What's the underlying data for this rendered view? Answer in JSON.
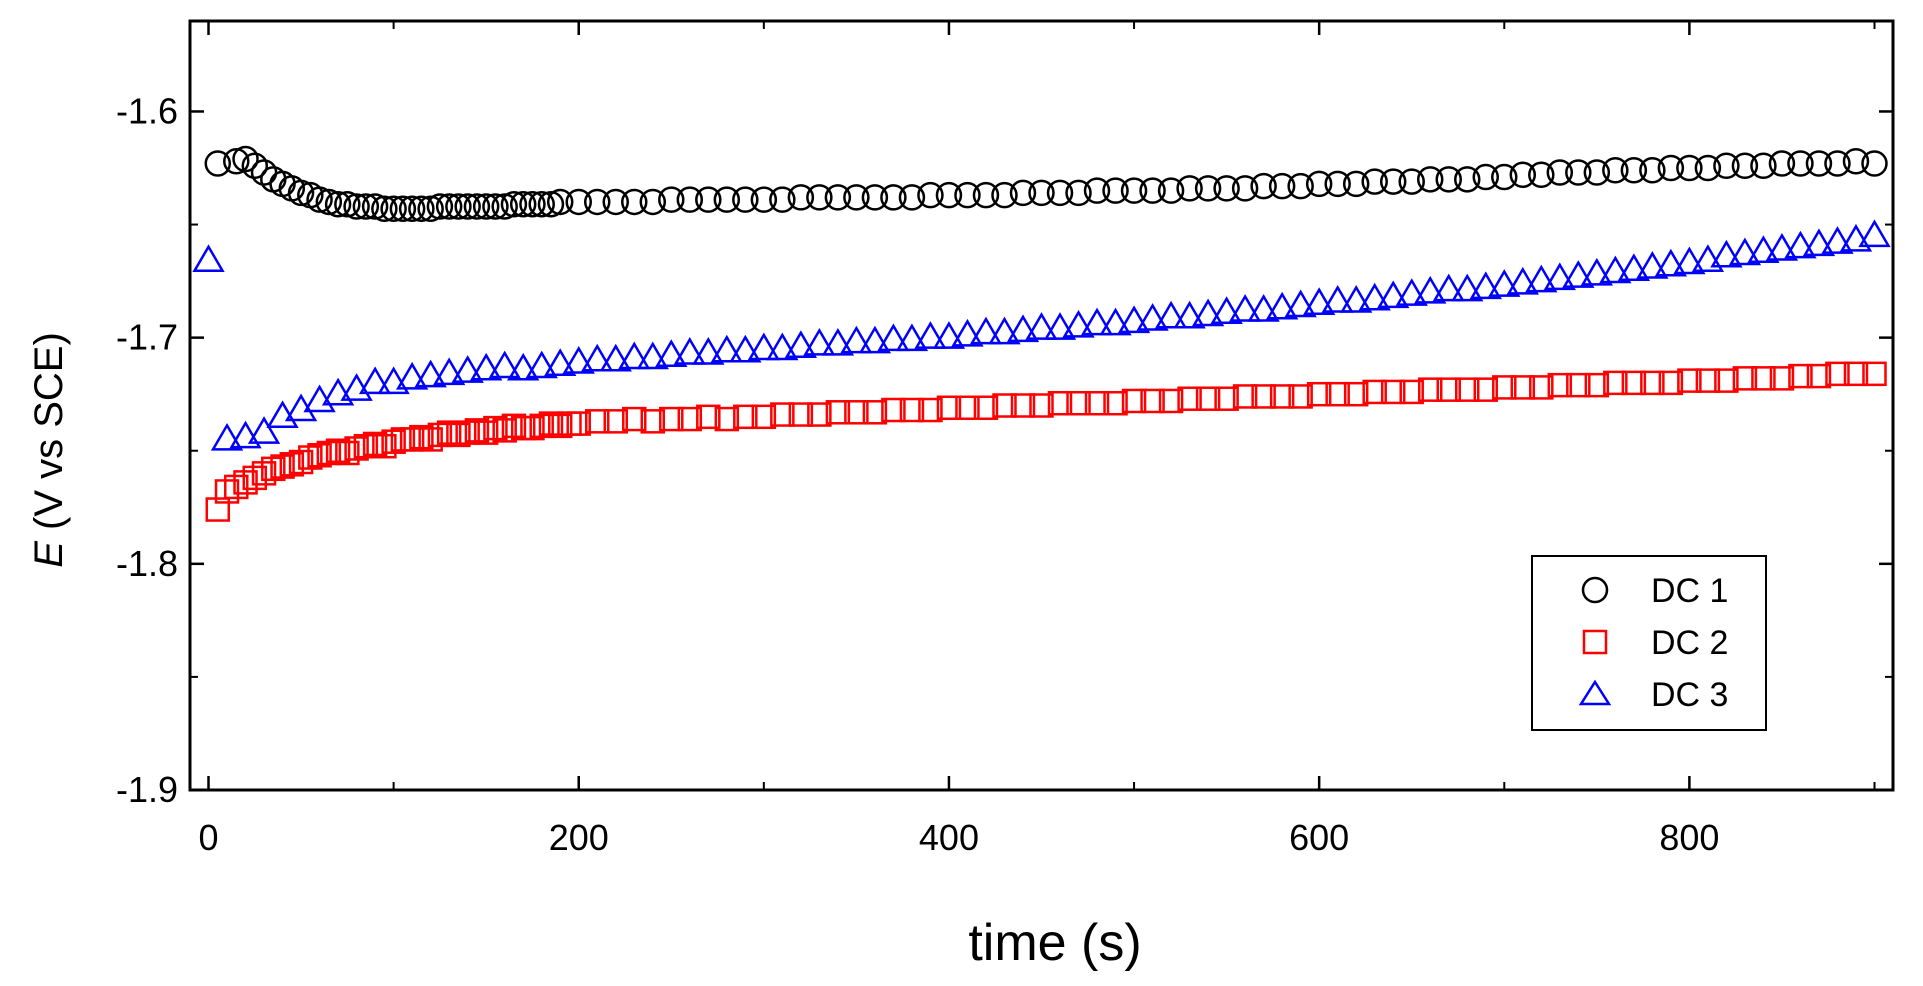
{
  "chart_data": {
    "type": "scatter",
    "title": "",
    "xlabel": "time (s)",
    "ylabel_italic": "E",
    "ylabel_rest": " (V vs SCE)",
    "xlim": [
      -10,
      910
    ],
    "ylim": [
      -1.9,
      -1.56
    ],
    "xticks": [
      0,
      200,
      400,
      600,
      800
    ],
    "xtick_labels": [
      "0",
      "200",
      "400",
      "600",
      "800"
    ],
    "yticks": [
      -1.9,
      -1.8,
      -1.7,
      -1.6
    ],
    "ytick_labels": [
      "-1.9",
      "-1.8",
      "-1.7",
      "-1.6"
    ],
    "grid": false,
    "legend_position": "bottom-right",
    "series": [
      {
        "name": "DC 1",
        "marker": "circle",
        "color": "#000000",
        "x": [
          5,
          15,
          20,
          25,
          30,
          35,
          40,
          45,
          50,
          55,
          60,
          65,
          70,
          75,
          80,
          85,
          90,
          95,
          100,
          105,
          110,
          115,
          120,
          125,
          130,
          135,
          140,
          145,
          150,
          155,
          160,
          165,
          170,
          175,
          180,
          185,
          190,
          200,
          210,
          220,
          230,
          240,
          250,
          260,
          270,
          280,
          290,
          300,
          310,
          320,
          330,
          340,
          350,
          360,
          370,
          380,
          390,
          400,
          410,
          420,
          430,
          440,
          450,
          460,
          470,
          480,
          490,
          500,
          510,
          520,
          530,
          540,
          550,
          560,
          570,
          580,
          590,
          600,
          610,
          620,
          630,
          640,
          650,
          660,
          670,
          680,
          690,
          700,
          710,
          720,
          730,
          740,
          750,
          760,
          770,
          780,
          790,
          800,
          810,
          820,
          830,
          840,
          850,
          860,
          870,
          880,
          890,
          900
        ],
        "y": [
          -1.623,
          -1.622,
          -1.621,
          -1.624,
          -1.627,
          -1.63,
          -1.632,
          -1.634,
          -1.636,
          -1.637,
          -1.639,
          -1.64,
          -1.641,
          -1.641,
          -1.642,
          -1.642,
          -1.642,
          -1.643,
          -1.643,
          -1.643,
          -1.643,
          -1.643,
          -1.643,
          -1.642,
          -1.642,
          -1.642,
          -1.642,
          -1.642,
          -1.642,
          -1.642,
          -1.642,
          -1.641,
          -1.641,
          -1.641,
          -1.641,
          -1.641,
          -1.64,
          -1.64,
          -1.64,
          -1.64,
          -1.64,
          -1.64,
          -1.639,
          -1.639,
          -1.639,
          -1.639,
          -1.639,
          -1.639,
          -1.639,
          -1.638,
          -1.638,
          -1.638,
          -1.638,
          -1.638,
          -1.638,
          -1.638,
          -1.637,
          -1.637,
          -1.637,
          -1.637,
          -1.637,
          -1.636,
          -1.636,
          -1.636,
          -1.636,
          -1.635,
          -1.635,
          -1.635,
          -1.635,
          -1.635,
          -1.634,
          -1.634,
          -1.634,
          -1.634,
          -1.633,
          -1.633,
          -1.633,
          -1.632,
          -1.632,
          -1.632,
          -1.631,
          -1.631,
          -1.631,
          -1.63,
          -1.63,
          -1.63,
          -1.629,
          -1.629,
          -1.628,
          -1.628,
          -1.627,
          -1.627,
          -1.627,
          -1.626,
          -1.626,
          -1.626,
          -1.625,
          -1.625,
          -1.625,
          -1.624,
          -1.624,
          -1.624,
          -1.623,
          -1.623,
          -1.623,
          -1.623,
          -1.622,
          -1.623
        ]
      },
      {
        "name": "DC 2",
        "marker": "square",
        "color": "#ff0000",
        "x": [
          5,
          10,
          15,
          20,
          25,
          30,
          35,
          40,
          45,
          50,
          55,
          60,
          65,
          70,
          75,
          80,
          85,
          90,
          95,
          100,
          105,
          110,
          115,
          120,
          125,
          130,
          135,
          140,
          145,
          150,
          155,
          160,
          165,
          170,
          175,
          180,
          185,
          190,
          195,
          200,
          210,
          220,
          230,
          240,
          250,
          260,
          270,
          280,
          290,
          300,
          310,
          320,
          330,
          340,
          350,
          360,
          370,
          380,
          390,
          400,
          410,
          420,
          430,
          440,
          450,
          460,
          470,
          480,
          490,
          500,
          510,
          520,
          530,
          540,
          550,
          560,
          570,
          580,
          590,
          600,
          610,
          620,
          630,
          640,
          650,
          660,
          670,
          680,
          690,
          700,
          710,
          720,
          730,
          740,
          750,
          760,
          770,
          780,
          790,
          800,
          810,
          820,
          830,
          840,
          850,
          860,
          870,
          880,
          890,
          900
        ],
        "y": [
          -1.776,
          -1.768,
          -1.766,
          -1.764,
          -1.762,
          -1.76,
          -1.758,
          -1.757,
          -1.756,
          -1.755,
          -1.753,
          -1.752,
          -1.751,
          -1.75,
          -1.751,
          -1.749,
          -1.748,
          -1.747,
          -1.748,
          -1.746,
          -1.745,
          -1.745,
          -1.744,
          -1.745,
          -1.743,
          -1.742,
          -1.743,
          -1.742,
          -1.741,
          -1.742,
          -1.74,
          -1.741,
          -1.739,
          -1.74,
          -1.74,
          -1.739,
          -1.738,
          -1.739,
          -1.738,
          -1.738,
          -1.737,
          -1.737,
          -1.736,
          -1.737,
          -1.736,
          -1.736,
          -1.735,
          -1.736,
          -1.735,
          -1.735,
          -1.734,
          -1.734,
          -1.734,
          -1.733,
          -1.733,
          -1.733,
          -1.732,
          -1.732,
          -1.732,
          -1.731,
          -1.731,
          -1.731,
          -1.73,
          -1.73,
          -1.73,
          -1.729,
          -1.729,
          -1.729,
          -1.729,
          -1.728,
          -1.728,
          -1.728,
          -1.727,
          -1.727,
          -1.727,
          -1.726,
          -1.726,
          -1.726,
          -1.726,
          -1.725,
          -1.725,
          -1.725,
          -1.724,
          -1.724,
          -1.724,
          -1.723,
          -1.723,
          -1.723,
          -1.723,
          -1.722,
          -1.722,
          -1.722,
          -1.721,
          -1.721,
          -1.721,
          -1.72,
          -1.72,
          -1.72,
          -1.72,
          -1.719,
          -1.719,
          -1.719,
          -1.718,
          -1.718,
          -1.718,
          -1.717,
          -1.717,
          -1.716,
          -1.716,
          -1.716
        ]
      },
      {
        "name": "DC 3",
        "marker": "triangle",
        "color": "#0000ff",
        "x": [
          0,
          10,
          20,
          30,
          40,
          50,
          60,
          70,
          80,
          90,
          100,
          110,
          120,
          130,
          140,
          150,
          160,
          170,
          180,
          190,
          200,
          210,
          220,
          230,
          240,
          250,
          260,
          270,
          280,
          290,
          300,
          310,
          320,
          330,
          340,
          350,
          360,
          370,
          380,
          390,
          400,
          410,
          420,
          430,
          440,
          450,
          460,
          470,
          480,
          490,
          500,
          510,
          520,
          530,
          540,
          550,
          560,
          570,
          580,
          590,
          600,
          610,
          620,
          630,
          640,
          650,
          660,
          670,
          680,
          690,
          700,
          710,
          720,
          730,
          740,
          750,
          760,
          770,
          780,
          790,
          800,
          810,
          820,
          830,
          840,
          850,
          860,
          870,
          880,
          890,
          900
        ],
        "y": [
          -1.666,
          -1.745,
          -1.744,
          -1.742,
          -1.735,
          -1.732,
          -1.728,
          -1.725,
          -1.723,
          -1.72,
          -1.72,
          -1.718,
          -1.717,
          -1.716,
          -1.715,
          -1.714,
          -1.713,
          -1.714,
          -1.713,
          -1.712,
          -1.711,
          -1.71,
          -1.71,
          -1.709,
          -1.709,
          -1.708,
          -1.707,
          -1.707,
          -1.706,
          -1.706,
          -1.705,
          -1.705,
          -1.704,
          -1.703,
          -1.703,
          -1.702,
          -1.702,
          -1.701,
          -1.701,
          -1.7,
          -1.7,
          -1.699,
          -1.698,
          -1.698,
          -1.697,
          -1.696,
          -1.696,
          -1.695,
          -1.694,
          -1.694,
          -1.693,
          -1.692,
          -1.691,
          -1.691,
          -1.69,
          -1.689,
          -1.688,
          -1.688,
          -1.687,
          -1.686,
          -1.685,
          -1.684,
          -1.684,
          -1.683,
          -1.682,
          -1.681,
          -1.68,
          -1.679,
          -1.679,
          -1.678,
          -1.677,
          -1.676,
          -1.675,
          -1.674,
          -1.673,
          -1.672,
          -1.671,
          -1.67,
          -1.669,
          -1.668,
          -1.667,
          -1.666,
          -1.664,
          -1.663,
          -1.662,
          -1.661,
          -1.66,
          -1.659,
          -1.658,
          -1.657,
          -1.655
        ]
      }
    ]
  }
}
